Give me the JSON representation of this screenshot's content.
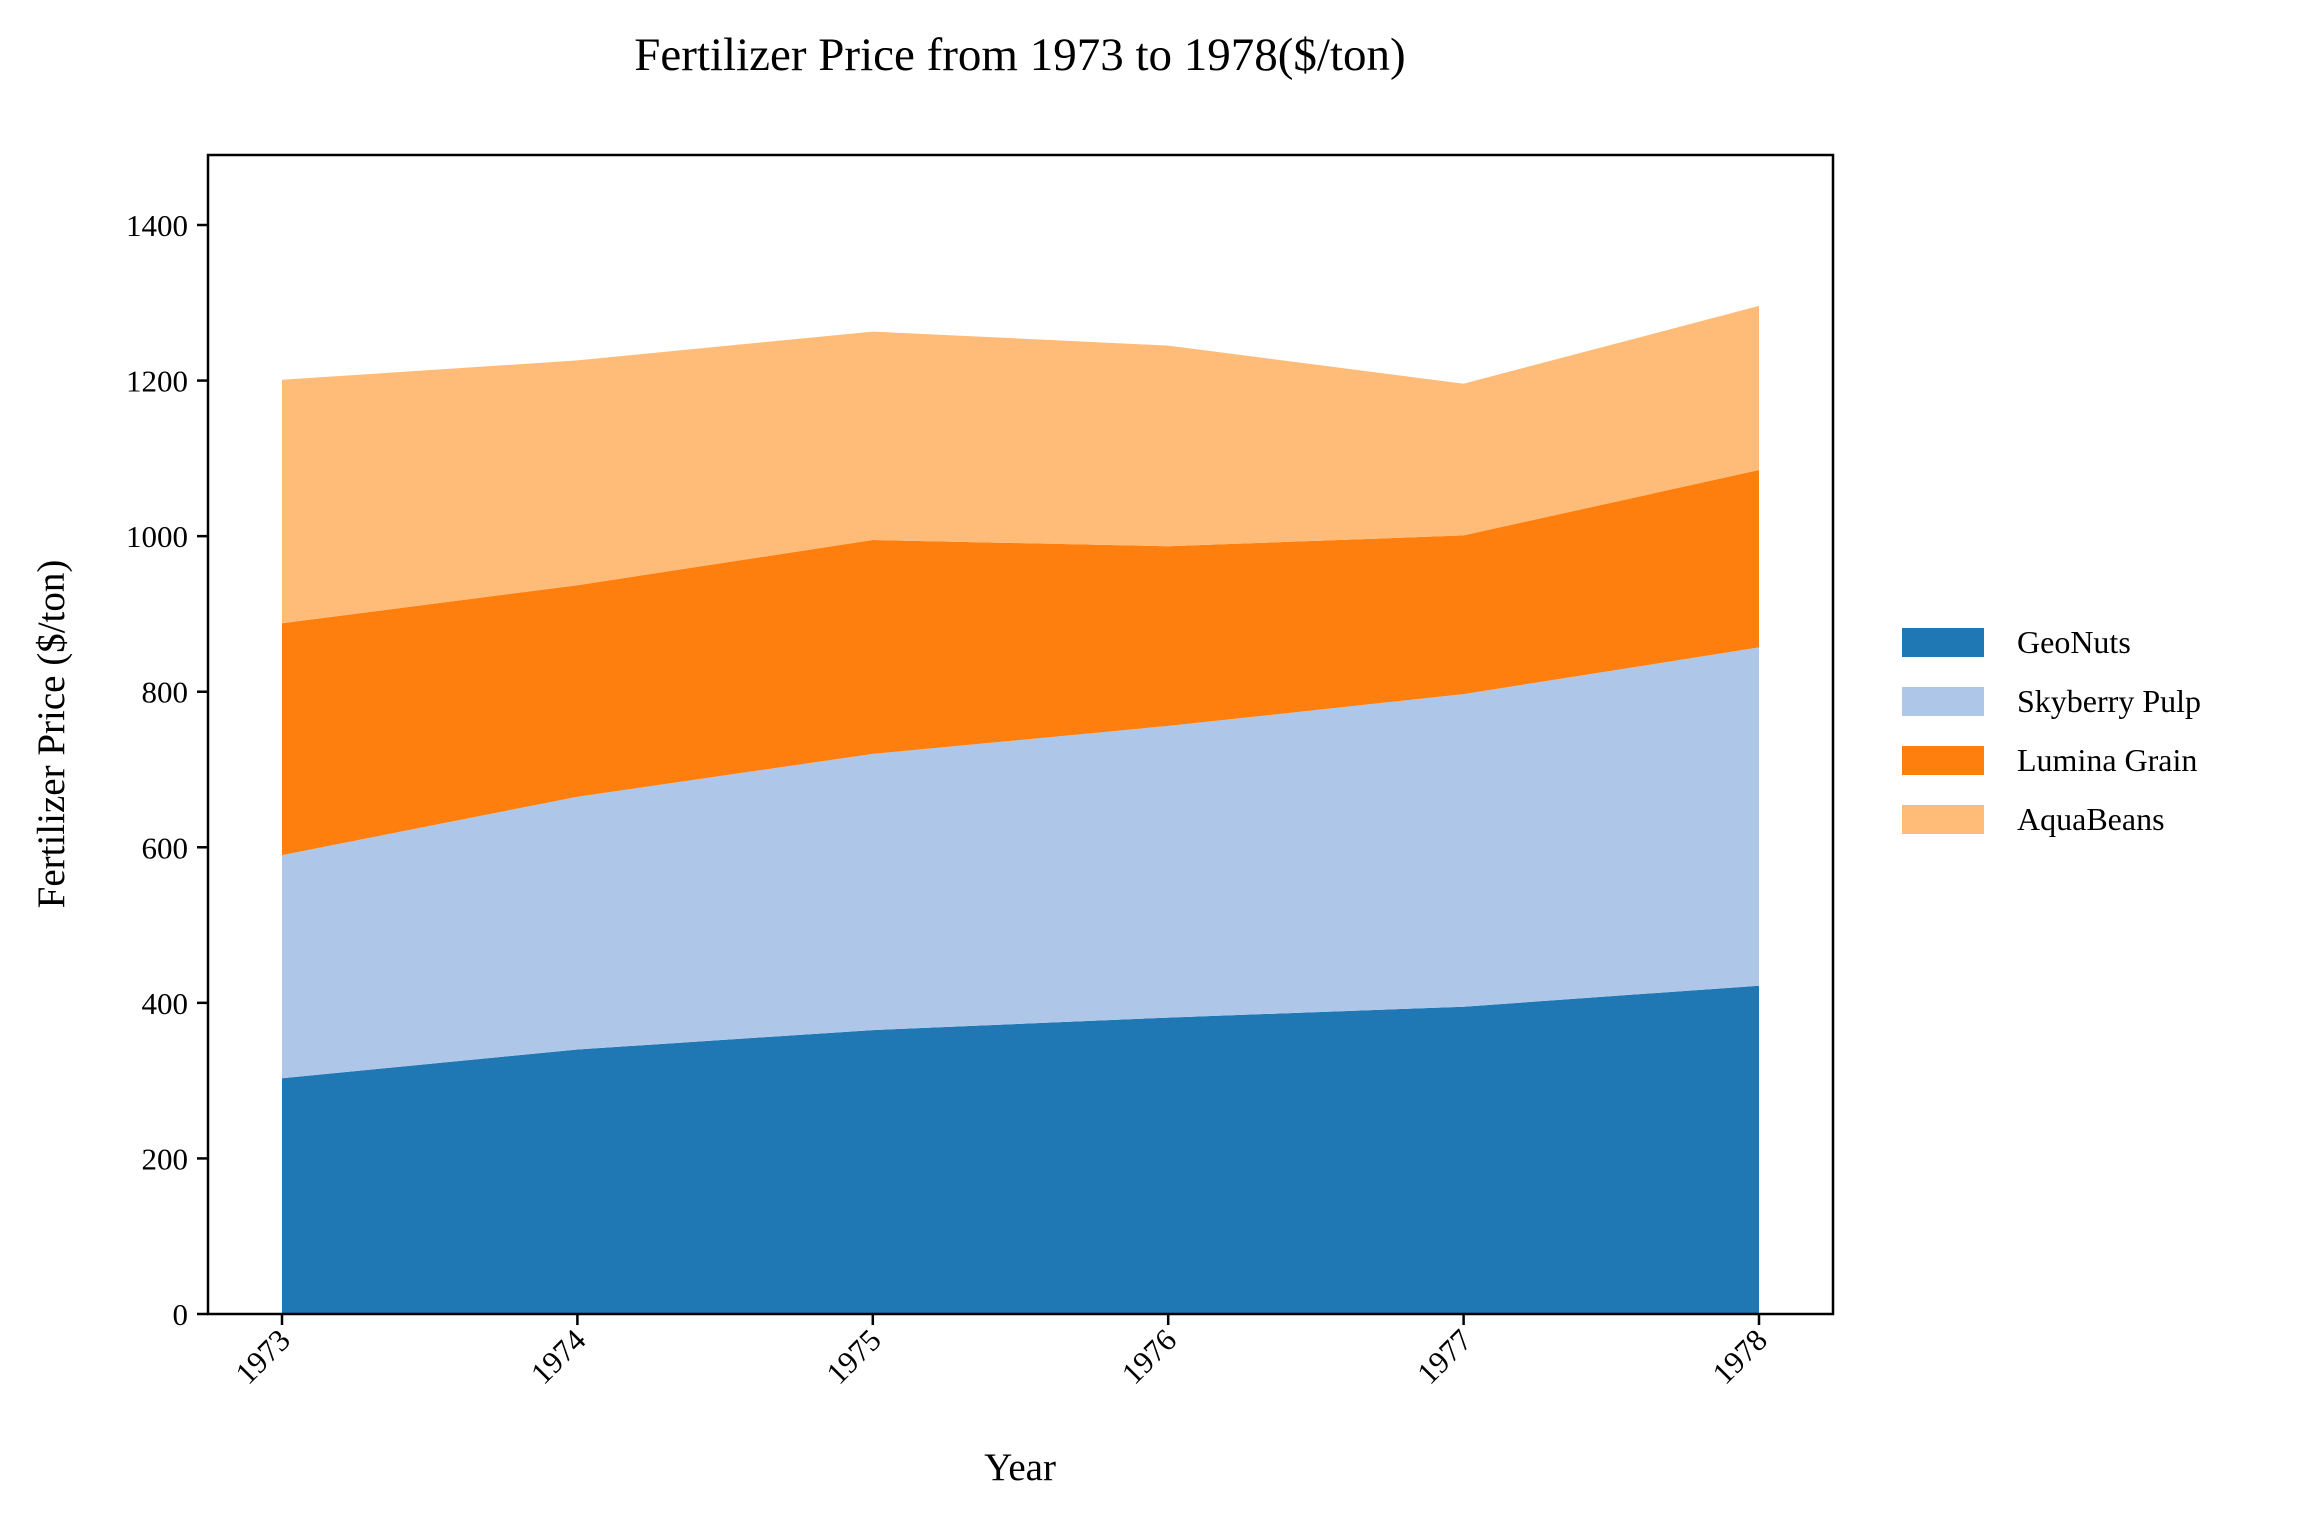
{
  "chart_data": {
    "type": "area",
    "stacked": true,
    "title": "Fertilizer Price from 1973 to 1978($/ton)",
    "xlabel": "Year",
    "ylabel": "Fertilizer Price ($/ton)",
    "x": [
      "1973",
      "1974",
      "1975",
      "1976",
      "1977",
      "1978"
    ],
    "ylim": [
      0,
      1490
    ],
    "yticks": [
      0,
      200,
      400,
      600,
      800,
      1000,
      1200,
      1400
    ],
    "grid": false,
    "legend_position": "right",
    "series": [
      {
        "name": "GeoNuts",
        "color": "#1f77b4",
        "values": [
          303,
          340,
          365,
          381,
          395,
          422
        ]
      },
      {
        "name": "Skyberry Pulp",
        "color": "#aec7e8",
        "values": [
          287,
          325,
          355,
          375,
          402,
          435
        ]
      },
      {
        "name": "Lumina Grain",
        "color": "#ff7f0e",
        "values": [
          298,
          272,
          275,
          231,
          204,
          228
        ]
      },
      {
        "name": "AquaBeans",
        "color": "#ffbb78",
        "values": [
          313,
          289,
          268,
          258,
          195,
          211
        ]
      }
    ]
  }
}
